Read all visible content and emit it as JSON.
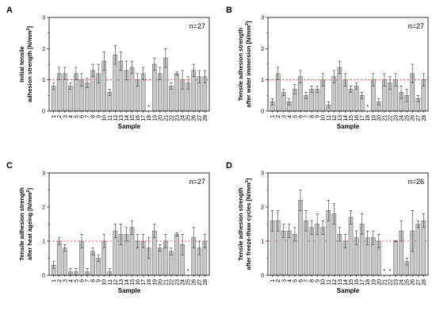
{
  "chart_data": [
    {
      "type": "bar",
      "panel": "A",
      "n_label": "n=27",
      "ylabel_lines": [
        "Initial tensile",
        "adhesion strength [N/mm",
        "]"
      ],
      "ylabel_sup": "2",
      "xlabel": "Sample",
      "ylim": [
        0,
        3
      ],
      "yticks": [
        "0",
        "1",
        "2",
        "3"
      ],
      "reference_line": 1,
      "categories": [
        "1",
        "2",
        "3",
        "4",
        "5",
        "6",
        "7",
        "8",
        "9",
        "10",
        "11",
        "12",
        "13",
        "14",
        "15",
        "16",
        "17",
        "18",
        "19",
        "20",
        "21",
        "22",
        "23",
        "24",
        "25",
        "26",
        "27",
        "28"
      ],
      "values": [
        0.8,
        1.2,
        1.2,
        0.8,
        1.2,
        1.0,
        0.9,
        1.3,
        1.2,
        1.6,
        0.6,
        1.8,
        1.6,
        1.3,
        1.4,
        1.0,
        1.2,
        null,
        1.5,
        1.2,
        1.7,
        0.8,
        1.2,
        1.0,
        0.9,
        1.3,
        1.1,
        1.1
      ],
      "errors": [
        0.1,
        0.2,
        0.2,
        0.1,
        0.2,
        0.2,
        0.15,
        0.2,
        0.3,
        0.3,
        0.1,
        0.3,
        0.3,
        0.3,
        0.2,
        0.2,
        0.2,
        null,
        0.2,
        0.2,
        0.3,
        0.1,
        0.05,
        0.3,
        0.2,
        0.2,
        0.2,
        0.2
      ],
      "missing_marker": "*"
    },
    {
      "type": "bar",
      "panel": "B",
      "n_label": "n=27",
      "ylabel_lines": [
        "Tensile adhesion strength",
        "after water immersion [N/mm",
        "]"
      ],
      "ylabel_sup": "2",
      "xlabel": "Sample",
      "ylim": [
        0,
        3
      ],
      "yticks": [
        "0",
        "1",
        "2",
        "3"
      ],
      "reference_line": 1,
      "categories": [
        "1",
        "2",
        "3",
        "4",
        "5",
        "6",
        "7",
        "8",
        "9",
        "10",
        "11",
        "12",
        "13",
        "14",
        "15",
        "16",
        "17",
        "18",
        "19",
        "20",
        "21",
        "22",
        "23",
        "24",
        "25",
        "26",
        "27",
        "28"
      ],
      "values": [
        0.3,
        1.2,
        0.6,
        0.3,
        0.7,
        1.1,
        0.5,
        0.7,
        0.7,
        1.0,
        0.2,
        1.1,
        1.4,
        1.0,
        0.7,
        0.8,
        0.5,
        null,
        1.0,
        0.3,
        1.0,
        0.9,
        1.0,
        0.6,
        0.5,
        1.2,
        0.4,
        1.0
      ],
      "errors": [
        0.1,
        0.2,
        0.1,
        0.1,
        0.15,
        0.2,
        0.1,
        0.1,
        0.1,
        0.2,
        0.1,
        0.2,
        0.2,
        0.2,
        0.1,
        0.1,
        0.1,
        null,
        0.2,
        0.1,
        0.2,
        0.2,
        0.2,
        0.2,
        0.2,
        0.3,
        0.1,
        0.2
      ],
      "missing_marker": "*"
    },
    {
      "type": "bar",
      "panel": "C",
      "n_label": "n=27",
      "ylabel_lines": [
        "Tensile adhesion strength",
        "after heat ageing [N/mm",
        "]"
      ],
      "ylabel_sup": "2",
      "xlabel": "Sample",
      "ylim": [
        0,
        3
      ],
      "yticks": [
        "0",
        "1",
        "2",
        "3"
      ],
      "reference_line": 1,
      "categories": [
        "1",
        "2",
        "3",
        "4",
        "5",
        "6",
        "7",
        "8",
        "9",
        "10",
        "11",
        "12",
        "13",
        "14",
        "15",
        "16",
        "17",
        "18",
        "19",
        "20",
        "21",
        "22",
        "23",
        "24",
        "25",
        "26",
        "27",
        "28"
      ],
      "values": [
        0.3,
        1.0,
        0.8,
        0.1,
        0.1,
        1.0,
        0.1,
        0.7,
        0.5,
        1.0,
        0.1,
        1.3,
        1.2,
        1.2,
        1.4,
        1.0,
        1.0,
        0.8,
        1.3,
        0.8,
        1.0,
        0.7,
        1.2,
        0.9,
        null,
        1.1,
        0.8,
        1.0
      ],
      "errors": [
        0.1,
        0.1,
        0.1,
        0.1,
        0.1,
        0.2,
        0.1,
        0.1,
        0.1,
        0.2,
        0.1,
        0.2,
        0.3,
        0.2,
        0.2,
        0.2,
        0.2,
        0.3,
        0.2,
        0.1,
        0.2,
        0.1,
        0.05,
        0.3,
        null,
        0.3,
        0.2,
        0.2
      ],
      "missing_marker": "*"
    },
    {
      "type": "bar",
      "panel": "D",
      "n_label": "n=26",
      "ylabel_lines": [
        "Tensile adhesion strength",
        "after freeze-thaw cycles [N/mm",
        "]"
      ],
      "ylabel_sup": "2",
      "xlabel": "Sample",
      "ylim": [
        0,
        3
      ],
      "yticks": [
        "0",
        "1",
        "2",
        "3"
      ],
      "reference_line": 1,
      "categories": [
        "1",
        "2",
        "3",
        "4",
        "5",
        "6",
        "7",
        "8",
        "9",
        "10",
        "11",
        "12",
        "13",
        "14",
        "15",
        "16",
        "17",
        "18",
        "19",
        "20",
        "21",
        "22",
        "23",
        "24",
        "25",
        "26",
        "27",
        "28"
      ],
      "values": [
        1.6,
        1.6,
        1.3,
        1.3,
        1.2,
        2.2,
        1.6,
        1.4,
        1.5,
        1.4,
        1.9,
        1.8,
        1.2,
        1.0,
        1.7,
        1.1,
        1.5,
        1.1,
        1.1,
        1.0,
        null,
        null,
        1.0,
        1.3,
        0.4,
        1.3,
        1.5,
        1.6
      ],
      "errors": [
        0.3,
        0.3,
        0.2,
        0.2,
        0.2,
        0.3,
        0.3,
        0.2,
        0.3,
        0.2,
        0.3,
        0.3,
        0.2,
        0.2,
        0.2,
        0.2,
        0.3,
        0.2,
        0.2,
        0.2,
        null,
        null,
        0.02,
        0.3,
        0.1,
        0.6,
        0.1,
        0.2
      ],
      "missing_marker": "*"
    }
  ]
}
